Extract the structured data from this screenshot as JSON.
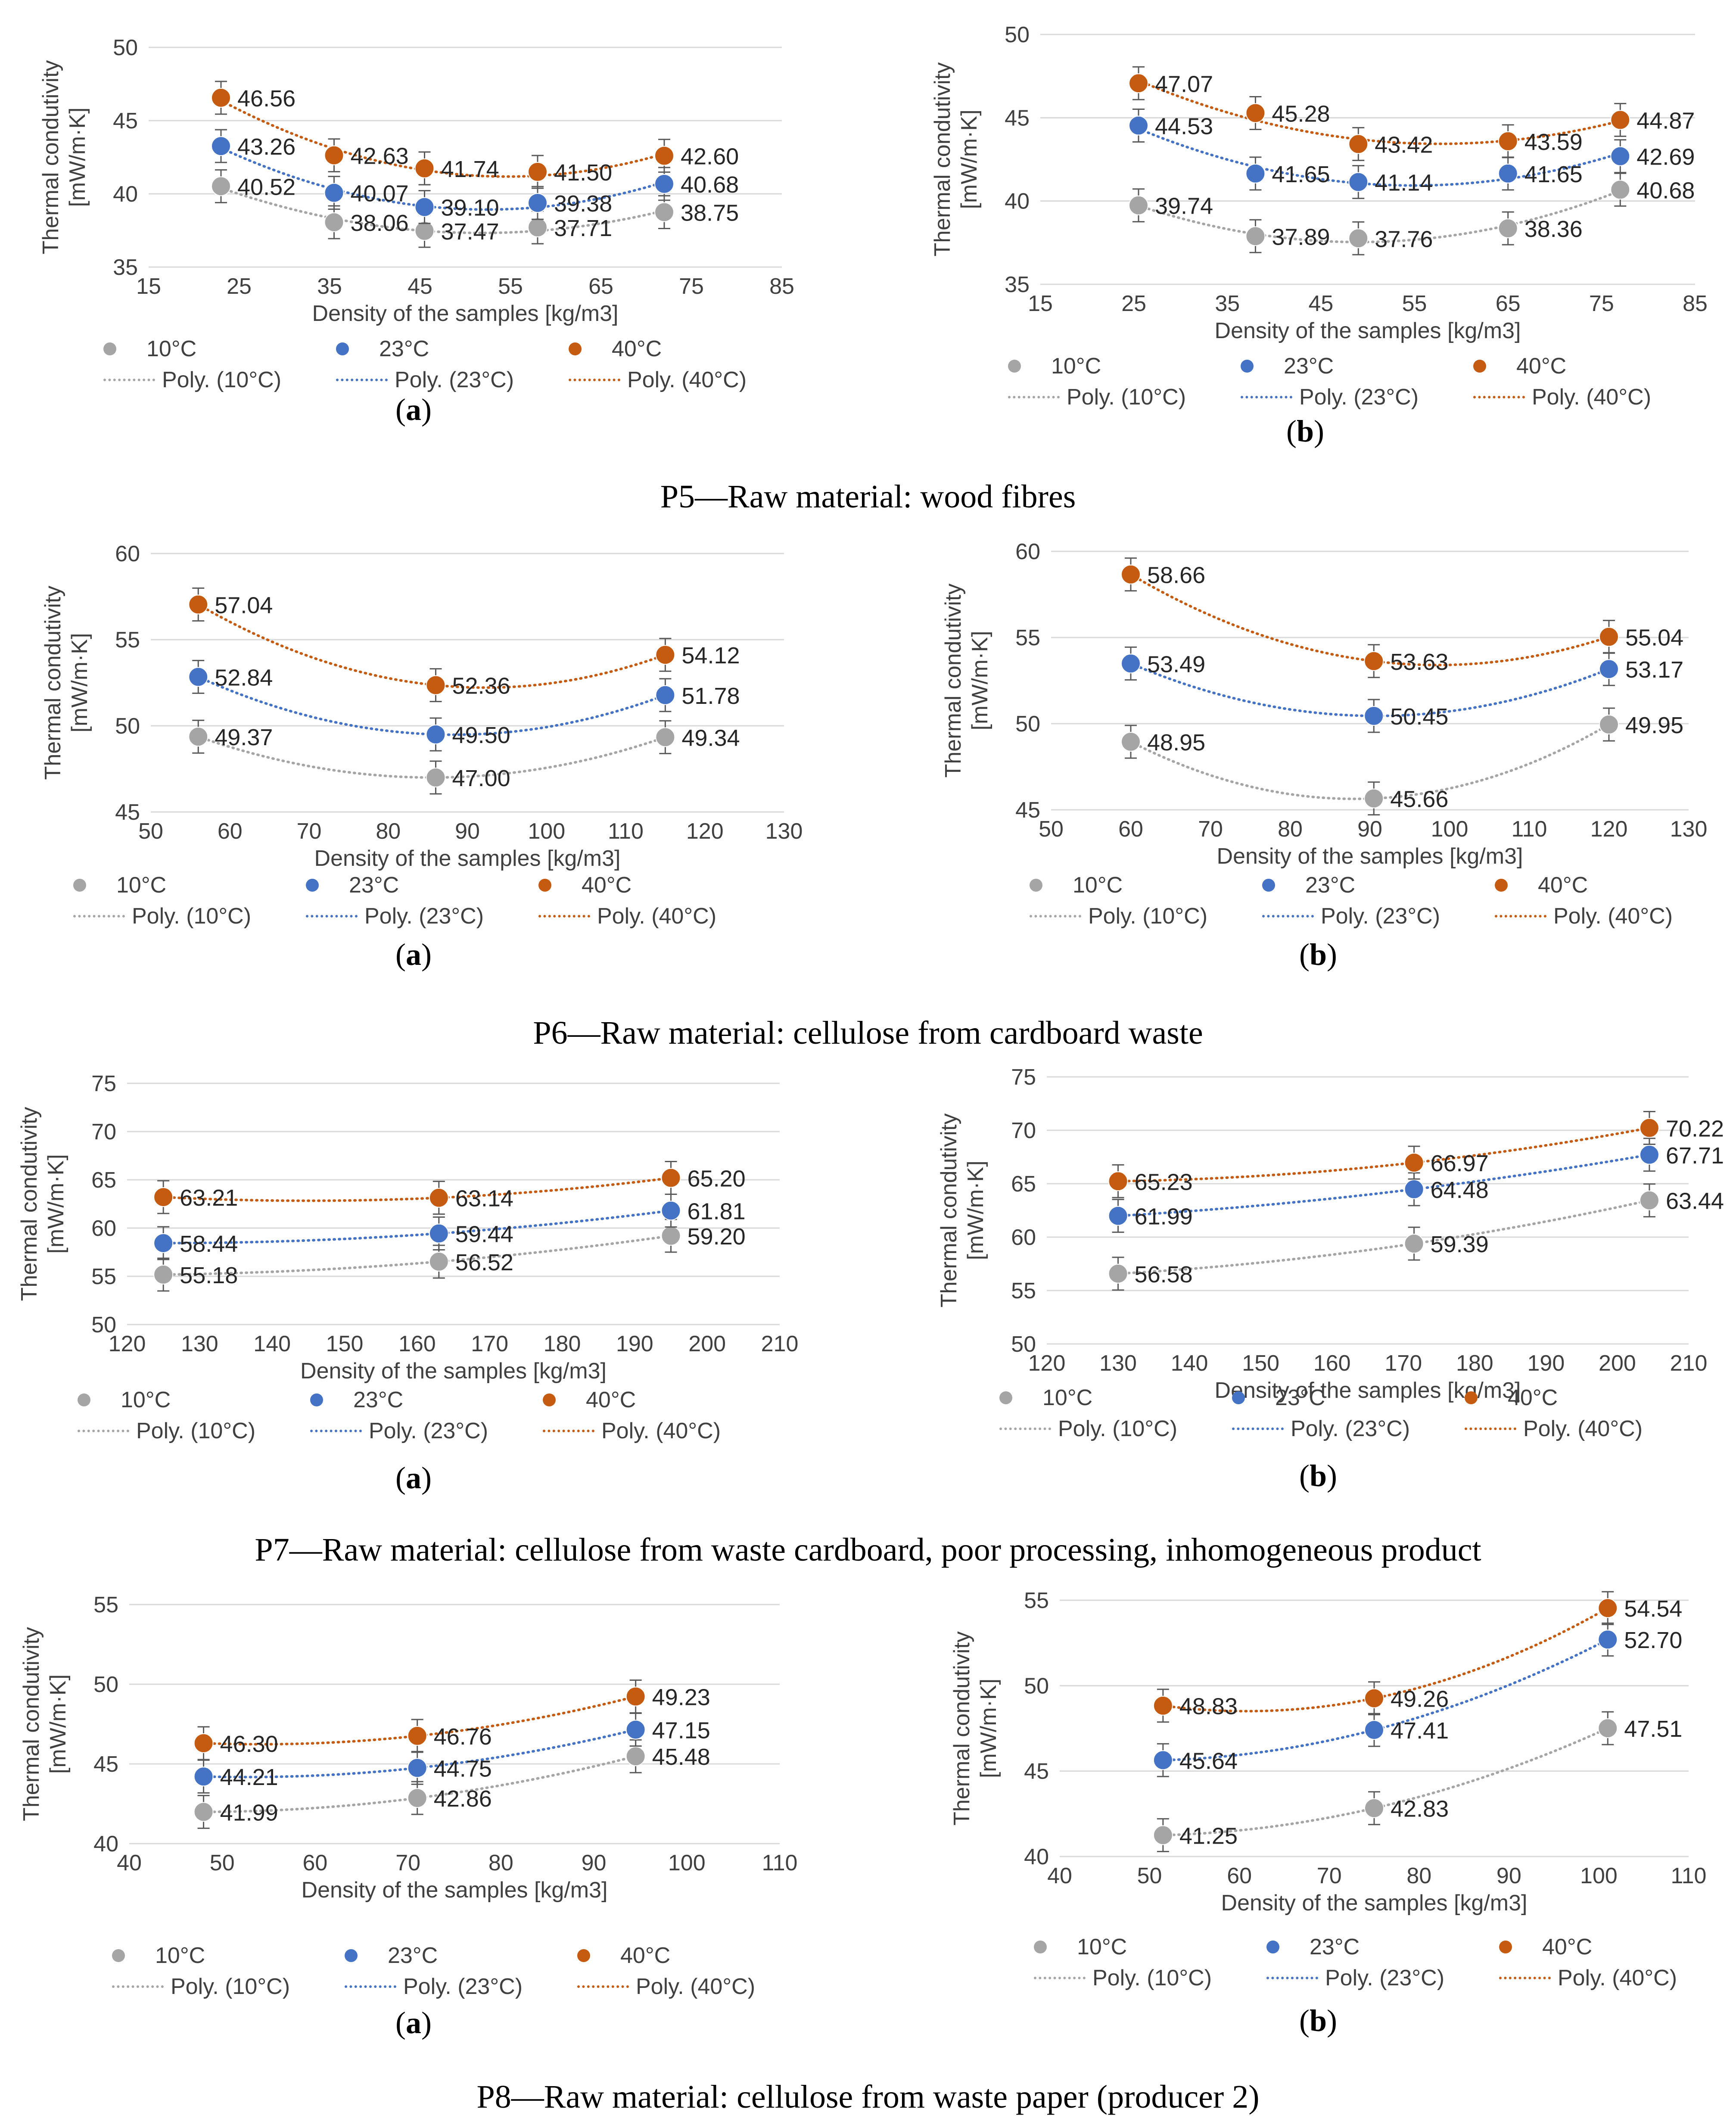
{
  "figure": {
    "captions": [
      "P5—Raw material: wood fibres",
      "P6—Raw material: cellulose from cardboard waste",
      "P7—Raw material: cellulose from waste cardboard, poor processing, inhomogeneous product",
      "P8—Raw material: cellulose from waste paper (producer 2)"
    ],
    "sub_labels": {
      "a": "a",
      "b": "b"
    }
  },
  "series_colors": {
    "10°C": "#a5a5a5",
    "23°C": "#4472c4",
    "40°C": "#c55a11"
  },
  "chart_data": [
    {
      "type": "scatter",
      "group": "P5",
      "panel": "a",
      "ylabel": "Thermal condutivity [mW/m·K]",
      "xlabel": "Density of the samples [kg/m3]",
      "xlim": [
        15,
        85
      ],
      "xticks": [
        15,
        25,
        35,
        45,
        55,
        65,
        75,
        85
      ],
      "ylim": [
        35,
        50
      ],
      "yticks": [
        35,
        40,
        45,
        50
      ],
      "legend": [
        "10°C",
        "23°C",
        "40°C",
        "Poly. (10°C)",
        "Poly. (23°C)",
        "Poly. (40°C)"
      ],
      "series": [
        {
          "name": "10°C",
          "x": [
            23,
            35.5,
            45.5,
            58,
            72
          ],
          "y": [
            40.52,
            38.06,
            37.47,
            37.71,
            38.75
          ],
          "labels": [
            "40.52",
            "38.06",
            "37.47",
            "37.71",
            "38.75"
          ]
        },
        {
          "name": "23°C",
          "x": [
            23,
            35.5,
            45.5,
            58,
            72
          ],
          "y": [
            43.26,
            40.07,
            39.1,
            39.38,
            40.68
          ],
          "labels": [
            "43.26",
            "40.07",
            "39.10",
            "39.38",
            "40.68"
          ]
        },
        {
          "name": "40°C",
          "x": [
            23,
            35.5,
            45.5,
            58,
            72
          ],
          "y": [
            46.56,
            42.63,
            41.74,
            41.5,
            42.6
          ],
          "labels": [
            "46.56",
            "42.63",
            "41.74",
            "41.50",
            "42.60"
          ]
        }
      ]
    },
    {
      "type": "scatter",
      "group": "P5",
      "panel": "b",
      "ylabel": "Thermal condutivity [mW/m·K]",
      "xlabel": "Density of the samples [kg/m3]",
      "xlim": [
        15,
        85
      ],
      "xticks": [
        15,
        25,
        35,
        45,
        55,
        65,
        75,
        85
      ],
      "ylim": [
        35,
        50
      ],
      "yticks": [
        35,
        40,
        45,
        50
      ],
      "legend": [
        "10°C",
        "23°C",
        "40°C",
        "Poly. (10°C)",
        "Poly. (23°C)",
        "Poly. (40°C)"
      ],
      "series": [
        {
          "name": "10°C",
          "x": [
            25.5,
            38,
            49,
            65,
            77
          ],
          "y": [
            39.74,
            37.89,
            37.76,
            38.36,
            40.68
          ],
          "labels": [
            "39.74",
            "37.89",
            "37.76",
            "38.36",
            "40.68"
          ]
        },
        {
          "name": "23°C",
          "x": [
            25.5,
            38,
            49,
            65,
            77
          ],
          "y": [
            44.53,
            41.65,
            41.14,
            41.65,
            42.69
          ],
          "labels": [
            "44.53",
            "41.65",
            "41.14",
            "41.65",
            "42.69"
          ]
        },
        {
          "name": "40°C",
          "x": [
            25.5,
            38,
            49,
            65,
            77
          ],
          "y": [
            47.07,
            45.28,
            43.42,
            43.59,
            44.87
          ],
          "labels": [
            "47.07",
            "45.28",
            "43.42",
            "43.59",
            "44.87"
          ]
        }
      ]
    },
    {
      "type": "scatter",
      "group": "P6",
      "panel": "a",
      "ylabel": "Thermal condutivity [mW/m·K]",
      "xlabel": "Density of the samples [kg/m3]",
      "xlim": [
        50,
        130
      ],
      "xticks": [
        50,
        60,
        70,
        80,
        90,
        100,
        110,
        120,
        130
      ],
      "ylim": [
        45,
        60
      ],
      "yticks": [
        45,
        50,
        55,
        60
      ],
      "legend": [
        "10°C",
        "23°C",
        "40°C",
        "Poly. (10°C)",
        "Poly. (23°C)",
        "Poly. (40°C)"
      ],
      "series": [
        {
          "name": "10°C",
          "x": [
            56,
            86,
            115
          ],
          "y": [
            49.37,
            47.0,
            49.34
          ],
          "labels": [
            "49.37",
            "47.00",
            "49.34"
          ]
        },
        {
          "name": "23°C",
          "x": [
            56,
            86,
            115
          ],
          "y": [
            52.84,
            49.5,
            51.78
          ],
          "labels": [
            "52.84",
            "49.50",
            "51.78"
          ]
        },
        {
          "name": "40°C",
          "x": [
            56,
            86,
            115
          ],
          "y": [
            57.04,
            52.36,
            54.12
          ],
          "labels": [
            "57.04",
            "52.36",
            "54.12"
          ]
        }
      ]
    },
    {
      "type": "scatter",
      "group": "P6",
      "panel": "b",
      "ylabel": "Thermal condutivity [mW/m·K]",
      "xlabel": "Density of the samples [kg/m3]",
      "xlim": [
        50,
        130
      ],
      "xticks": [
        50,
        60,
        70,
        80,
        90,
        100,
        110,
        120,
        130
      ],
      "ylim": [
        45,
        60
      ],
      "yticks": [
        45,
        50,
        55,
        60
      ],
      "legend": [
        "10°C",
        "23°C",
        "40°C",
        "Poly. (10°C)",
        "Poly. (23°C)",
        "Poly. (40°C)"
      ],
      "series": [
        {
          "name": "10°C",
          "x": [
            60,
            90.5,
            120
          ],
          "y": [
            48.95,
            45.66,
            49.95
          ],
          "labels": [
            "48.95",
            "45.66",
            "49.95"
          ]
        },
        {
          "name": "23°C",
          "x": [
            60,
            90.5,
            120
          ],
          "y": [
            53.49,
            50.45,
            53.17
          ],
          "labels": [
            "53.49",
            "50.45",
            "53.17"
          ]
        },
        {
          "name": "40°C",
          "x": [
            60,
            90.5,
            120
          ],
          "y": [
            58.66,
            53.63,
            55.04
          ],
          "labels": [
            "58.66",
            "53.63",
            "55.04"
          ]
        }
      ]
    },
    {
      "type": "scatter",
      "group": "P7",
      "panel": "a",
      "ylabel": "Thermal condutivity [mW/m·K]",
      "xlabel": "Density of the samples [kg/m3]",
      "xlim": [
        120,
        210
      ],
      "xticks": [
        120,
        130,
        140,
        150,
        160,
        170,
        180,
        190,
        200,
        210
      ],
      "ylim": [
        50,
        75
      ],
      "yticks": [
        50,
        55,
        60,
        65,
        70,
        75
      ],
      "legend": [
        "10°C",
        "23°C",
        "40°C",
        "Poly. (10°C)",
        "Poly. (23°C)",
        "Poly. (40°C)"
      ],
      "series": [
        {
          "name": "10°C",
          "x": [
            125,
            163,
            195
          ],
          "y": [
            55.18,
            56.52,
            59.2
          ],
          "labels": [
            "55.18",
            "56.52",
            "59.20"
          ]
        },
        {
          "name": "23°C",
          "x": [
            125,
            163,
            195
          ],
          "y": [
            58.44,
            59.44,
            61.81
          ],
          "labels": [
            "58.44",
            "59.44",
            "61.81"
          ]
        },
        {
          "name": "40°C",
          "x": [
            125,
            163,
            195
          ],
          "y": [
            63.21,
            63.14,
            65.2
          ],
          "labels": [
            "63.21",
            "63.14",
            "65.20"
          ]
        }
      ]
    },
    {
      "type": "scatter",
      "group": "P7",
      "panel": "b",
      "ylabel": "Thermal condutivity [mW/m·K]",
      "xlabel": "Density of the samples [kg/m3]",
      "xlim": [
        120,
        210
      ],
      "xticks": [
        120,
        130,
        140,
        150,
        160,
        170,
        180,
        190,
        200,
        210
      ],
      "ylim": [
        50,
        75
      ],
      "yticks": [
        50,
        55,
        60,
        65,
        70,
        75
      ],
      "legend": [
        "10°C",
        "23°C",
        "40°C",
        "Poly. (10°C)",
        "Poly. (23°C)",
        "Poly. (40°C)"
      ],
      "series": [
        {
          "name": "10°C",
          "x": [
            130,
            171.5,
            204.5
          ],
          "y": [
            56.58,
            59.39,
            63.44
          ],
          "labels": [
            "56.58",
            "59.39",
            "63.44"
          ]
        },
        {
          "name": "23°C",
          "x": [
            130,
            171.5,
            204.5
          ],
          "y": [
            61.99,
            64.48,
            67.71
          ],
          "labels": [
            "61.99",
            "64.48",
            "67.71"
          ]
        },
        {
          "name": "40°C",
          "x": [
            130,
            171.5,
            204.5
          ],
          "y": [
            65.23,
            66.97,
            70.22
          ],
          "labels": [
            "65.23",
            "66.97",
            "70.22"
          ]
        }
      ]
    },
    {
      "type": "scatter",
      "group": "P8",
      "panel": "a",
      "ylabel": "Thermal condutivity [mW/m·K]",
      "xlabel": "Density of the samples [kg/m3]",
      "xlim": [
        40,
        110
      ],
      "xticks": [
        40,
        50,
        60,
        70,
        80,
        90,
        100,
        110
      ],
      "ylim": [
        40,
        55
      ],
      "yticks": [
        40,
        45,
        50,
        55
      ],
      "legend": [
        "10°C",
        "23°C",
        "40°C",
        "Poly. (10°C)",
        "Poly. (23°C)",
        "Poly. (40°C)"
      ],
      "series": [
        {
          "name": "10°C",
          "x": [
            48,
            71,
            94.5
          ],
          "y": [
            41.99,
            42.86,
            45.48
          ],
          "labels": [
            "41.99",
            "42.86",
            "45.48"
          ]
        },
        {
          "name": "23°C",
          "x": [
            48,
            71,
            94.5
          ],
          "y": [
            44.21,
            44.75,
            47.15
          ],
          "labels": [
            "44.21",
            "44.75",
            "47.15"
          ]
        },
        {
          "name": "40°C",
          "x": [
            48,
            71,
            94.5
          ],
          "y": [
            46.3,
            46.76,
            49.23
          ],
          "labels": [
            "46.30",
            "46.76",
            "49.23"
          ]
        }
      ]
    },
    {
      "type": "scatter",
      "group": "P8",
      "panel": "b",
      "ylabel": "Thermal condutivity [mW/m·K]",
      "xlabel": "Density of the samples [kg/m3]",
      "xlim": [
        40,
        110
      ],
      "xticks": [
        40,
        50,
        60,
        70,
        80,
        90,
        100,
        110
      ],
      "ylim": [
        40,
        55
      ],
      "yticks": [
        40,
        45,
        50,
        55
      ],
      "legend": [
        "10°C",
        "23°C",
        "40°C",
        "Poly. (10°C)",
        "Poly. (23°C)",
        "Poly. (40°C)"
      ],
      "series": [
        {
          "name": "10°C",
          "x": [
            51.5,
            75,
            101
          ],
          "y": [
            41.25,
            42.83,
            47.51
          ],
          "labels": [
            "41.25",
            "42.83",
            "47.51"
          ]
        },
        {
          "name": "23°C",
          "x": [
            51.5,
            75,
            101
          ],
          "y": [
            45.64,
            47.41,
            52.7
          ],
          "labels": [
            "45.64",
            "47.41",
            "52.70"
          ]
        },
        {
          "name": "40°C",
          "x": [
            51.5,
            75,
            101
          ],
          "y": [
            48.83,
            49.26,
            54.54
          ],
          "labels": [
            "48.83",
            "49.26",
            "54.54"
          ]
        }
      ]
    }
  ]
}
